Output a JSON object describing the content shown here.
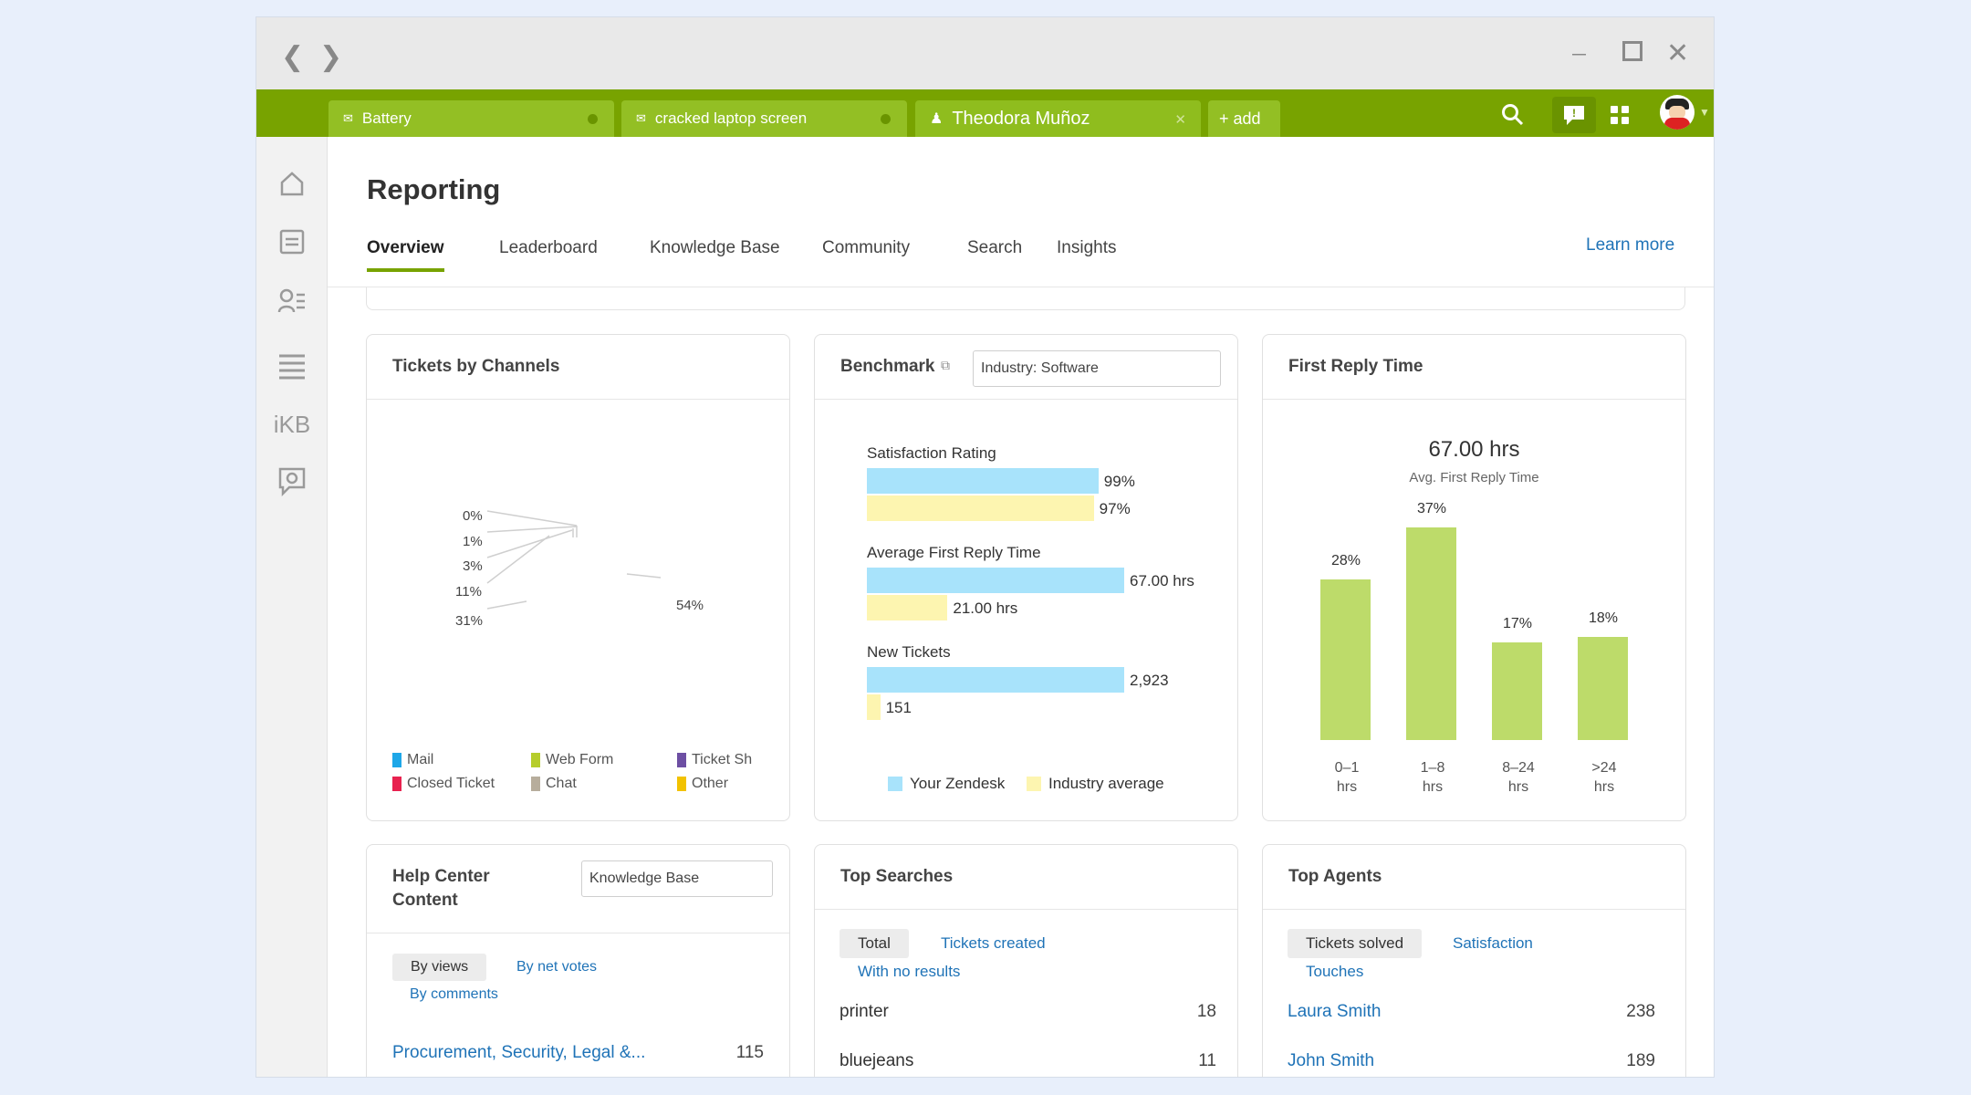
{
  "tabs": [
    {
      "label": "Battery",
      "icon": "mail-icon"
    },
    {
      "label": "cracked laptop screen",
      "icon": "mail-icon"
    },
    {
      "label": "Theodora Muñoz",
      "icon": "user-icon"
    }
  ],
  "add_tab_label": "+ add",
  "sidebar": {
    "kb_label": "iKB"
  },
  "page": {
    "title": "Reporting",
    "learn_more": "Learn more"
  },
  "report_tabs": [
    "Overview",
    "Leaderboard",
    "Knowledge Base",
    "Community",
    "Search",
    "Insights"
  ],
  "tickets_by_channels": {
    "title": "Tickets by Channels",
    "slice_labels": [
      "0%",
      "1%",
      "3%",
      "11%",
      "31%",
      "54%"
    ],
    "legend": [
      {
        "name": "Mail",
        "color": "#1ea7e8"
      },
      {
        "name": "Web Form",
        "color": "#b6cd2b"
      },
      {
        "name": "Ticket Sh",
        "color": "#6d4fa3"
      },
      {
        "name": "Closed Ticket",
        "color": "#e8224f"
      },
      {
        "name": "Chat",
        "color": "#b7ad9c"
      },
      {
        "name": "Other",
        "color": "#f2c200"
      }
    ]
  },
  "benchmark": {
    "title": "Benchmark",
    "dropdown": "Industry: Software",
    "chart_data": {
      "type": "bar",
      "categories": [
        "Satisfaction Rating",
        "Average First Reply Time",
        "New Tickets"
      ],
      "series": [
        {
          "name": "Your Zendesk",
          "values": [
            99,
            67.0,
            2923
          ],
          "labels": [
            "99%",
            "67.00 hrs",
            "2,923"
          ],
          "color": "#a8e3fb"
        },
        {
          "name": "Industry average",
          "values": [
            97,
            21.0,
            151
          ],
          "labels": [
            "97%",
            "21.00 hrs",
            "151"
          ],
          "color": "#fdf5b0"
        }
      ]
    }
  },
  "first_reply": {
    "title": "First Reply Time",
    "value": "67.00 hrs",
    "subtitle": "Avg. First Reply Time",
    "chart_data": {
      "type": "bar",
      "categories": [
        "0-1 hrs",
        "1-8 hrs",
        "8-24 hrs",
        ">24 hrs"
      ],
      "category_lines": [
        [
          "0–1",
          "hrs"
        ],
        [
          "1–8",
          "hrs"
        ],
        [
          "8–24",
          "hrs"
        ],
        [
          ">24",
          "hrs"
        ]
      ],
      "values": [
        28,
        37,
        17,
        18
      ],
      "labels": [
        "28%",
        "37%",
        "17%",
        "18%"
      ],
      "color": "#bddb6a"
    }
  },
  "help_center": {
    "title_line1": "Help Center",
    "title_line2": "Content",
    "dropdown": "Knowledge Base",
    "filters": {
      "active": "By views",
      "net_votes": "By net votes",
      "comments": "By comments"
    },
    "rows": [
      {
        "label": "Procurement, Security, Legal &...",
        "value": "115"
      }
    ]
  },
  "top_searches": {
    "title": "Top Searches",
    "filters": {
      "active": "Total",
      "created": "Tickets created",
      "no_results": "With no results"
    },
    "rows": [
      {
        "label": "printer",
        "value": "18"
      },
      {
        "label": "bluejeans",
        "value": "11"
      }
    ]
  },
  "top_agents": {
    "title": "Top Agents",
    "filters": {
      "active": "Tickets solved",
      "satisfaction": "Satisfaction",
      "touches": "Touches"
    },
    "rows": [
      {
        "label": "Laura Smith",
        "value": "238"
      },
      {
        "label": "John Smith",
        "value": "189"
      }
    ]
  }
}
